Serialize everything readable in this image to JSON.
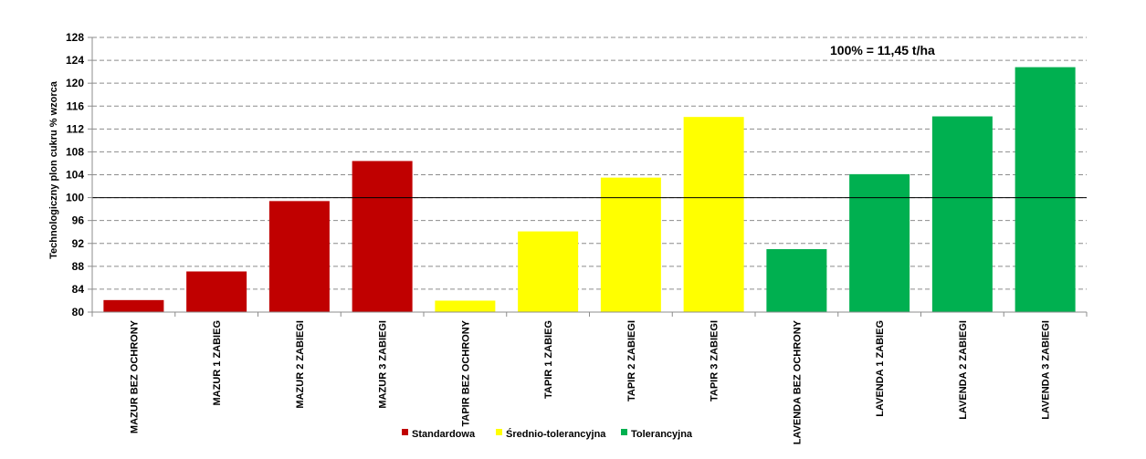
{
  "chart_data": {
    "type": "bar",
    "title": "",
    "xlabel": "",
    "ylabel": "Technologiczny plon cukru % wzorca",
    "ylim": [
      80,
      128
    ],
    "yticks": [
      80,
      84,
      88,
      92,
      96,
      100,
      104,
      108,
      112,
      116,
      120,
      124,
      128
    ],
    "grid": true,
    "reference_line": 100,
    "annotation": "100% = 11,45 t/ha",
    "legend_position": "bottom",
    "categories": [
      "MAZUR BEZ OCHRONY",
      "MAZUR 1 ZABIEG",
      "MAZUR 2 ZABIEGI",
      "MAZUR 3 ZABIEGI",
      "TAPIR BEZ OCHRONY",
      "TAPIR 1 ZABIEG",
      "TAPIR 2 ZABIEGI",
      "TAPIR 3 ZABIEGI",
      "LAVENDA BEZ OCHRONY",
      "LAVENDA 1 ZABIEG",
      "LAVENDA 2 ZABIEGI",
      "LAVENDA 3 ZABIEGI"
    ],
    "values": [
      82.1,
      87.1,
      99.4,
      106.4,
      82.0,
      94.1,
      103.5,
      114.1,
      91.0,
      104.1,
      114.2,
      122.8
    ],
    "bar_groups": [
      0,
      0,
      0,
      0,
      1,
      1,
      1,
      1,
      2,
      2,
      2,
      2
    ],
    "series": [
      {
        "name": "Standardowa",
        "color": "#C00000"
      },
      {
        "name": "Średnio-tolerancyjna",
        "color": "#FFFF00"
      },
      {
        "name": "Tolerancyjna",
        "color": "#00B050"
      }
    ]
  }
}
